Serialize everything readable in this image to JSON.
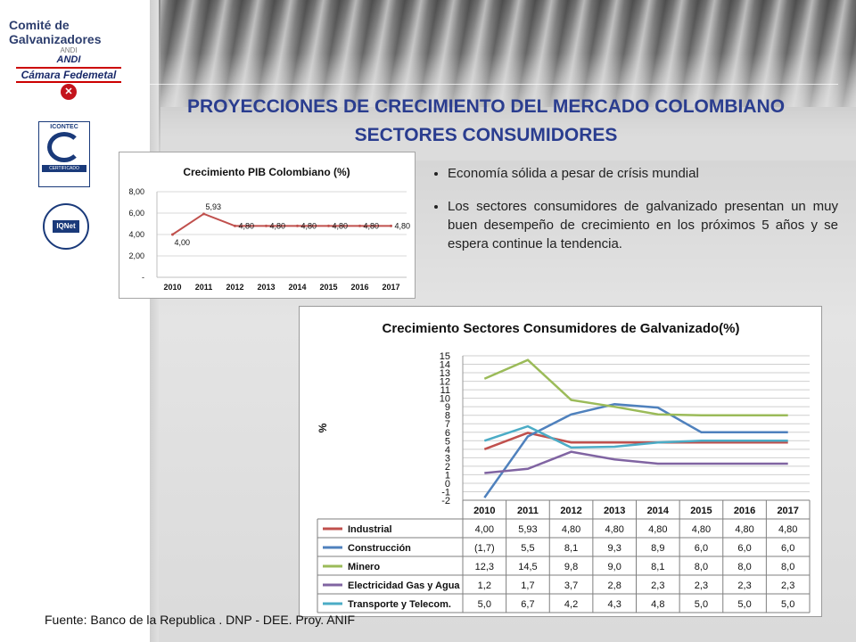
{
  "header": {
    "committee": "Comité de Galvanizadores",
    "andi_top": "ANDI",
    "andi_name": "ANDI",
    "andi_sub": "Cámara Fedemetal",
    "cert1_top": "ICONTEC",
    "cert1_bar": "CERTIFICADO",
    "cert2_name": "IQNet"
  },
  "title": {
    "line1": "PROYECCIONES DE CRECIMIENTO  DEL MERCADO COLOMBIANO",
    "line2": "SECTORES CONSUMIDORES"
  },
  "bullets": [
    "Economía sólida a pesar de crísis mundial",
    "Los sectores consumidores  de galvanizado presentan un muy buen desempeño de crecimiento en los próximos 5 años y se espera continue la tendencia."
  ],
  "source": "Fuente: Banco de la Republica . DNP - DEE. Proy. ANIF",
  "colors": {
    "title": "#2a3d8f",
    "pib_line": "#c0504d",
    "industrial": "#c0504d",
    "construccion": "#4f81bd",
    "minero": "#9bbb59",
    "electricidad": "#8064a2",
    "transporte": "#4bacc6"
  },
  "chart_data": [
    {
      "type": "line",
      "title": "Crecimiento PIB Colombiano (%)",
      "xlabel": "",
      "ylabel": "",
      "categories": [
        "2010",
        "2011",
        "2012",
        "2013",
        "2014",
        "2015",
        "2016",
        "2017"
      ],
      "series": [
        {
          "values": [
            4.0,
            5.93,
            4.8,
            4.8,
            4.8,
            4.8,
            4.8,
            4.8
          ],
          "labels": [
            "4,00",
            "5,93",
            "4,80",
            "4,80",
            "4,80",
            "4,80",
            "4,80",
            "4,80"
          ]
        }
      ],
      "yticks": [
        "8,00",
        "6,00",
        "4,00",
        "2,00",
        "-"
      ],
      "ylim": [
        0,
        8
      ],
      "grid": true,
      "legend": "none"
    },
    {
      "type": "line",
      "title": "Crecimiento Sectores Consumidores de Galvanizado(%)",
      "xlabel": "",
      "ylabel": "%",
      "categories": [
        "2010",
        "2011",
        "2012",
        "2013",
        "2014",
        "2015",
        "2016",
        "2017"
      ],
      "series": [
        {
          "name": "Industrial",
          "values": [
            4.0,
            5.93,
            4.8,
            4.8,
            4.8,
            4.8,
            4.8,
            4.8
          ],
          "labels": [
            "4,00",
            "5,93",
            "4,80",
            "4,80",
            "4,80",
            "4,80",
            "4,80",
            "4,80"
          ]
        },
        {
          "name": "Construcción",
          "values": [
            -1.7,
            5.5,
            8.1,
            9.3,
            8.9,
            6.0,
            6.0,
            6.0
          ],
          "labels": [
            "(1,7)",
            "5,5",
            "8,1",
            "9,3",
            "8,9",
            "6,0",
            "6,0",
            "6,0"
          ]
        },
        {
          "name": "Minero",
          "values": [
            12.3,
            14.5,
            9.8,
            9.0,
            8.1,
            8.0,
            8.0,
            8.0
          ],
          "labels": [
            "12,3",
            "14,5",
            "9,8",
            "9,0",
            "8,1",
            "8,0",
            "8,0",
            "8,0"
          ]
        },
        {
          "name": "Electricidad Gas y Agua",
          "values": [
            1.2,
            1.7,
            3.7,
            2.8,
            2.3,
            2.3,
            2.3,
            2.3
          ],
          "labels": [
            "1,2",
            "1,7",
            "3,7",
            "2,8",
            "2,3",
            "2,3",
            "2,3",
            "2,3"
          ]
        },
        {
          "name": "Transporte y Telecom.",
          "values": [
            5.0,
            6.7,
            4.2,
            4.3,
            4.8,
            5.0,
            5.0,
            5.0
          ],
          "labels": [
            "5,0",
            "6,7",
            "4,2",
            "4,3",
            "4,8",
            "5,0",
            "5,0",
            "5,0"
          ]
        }
      ],
      "yticks": [
        "15",
        "14",
        "13",
        "12",
        "11",
        "10",
        "9",
        "8",
        "7",
        "6",
        "5",
        "4",
        "3",
        "2",
        "1",
        "0",
        "-1",
        "-2"
      ],
      "ylim": [
        -2,
        15
      ],
      "grid": true,
      "legend": "data-table-below"
    }
  ]
}
